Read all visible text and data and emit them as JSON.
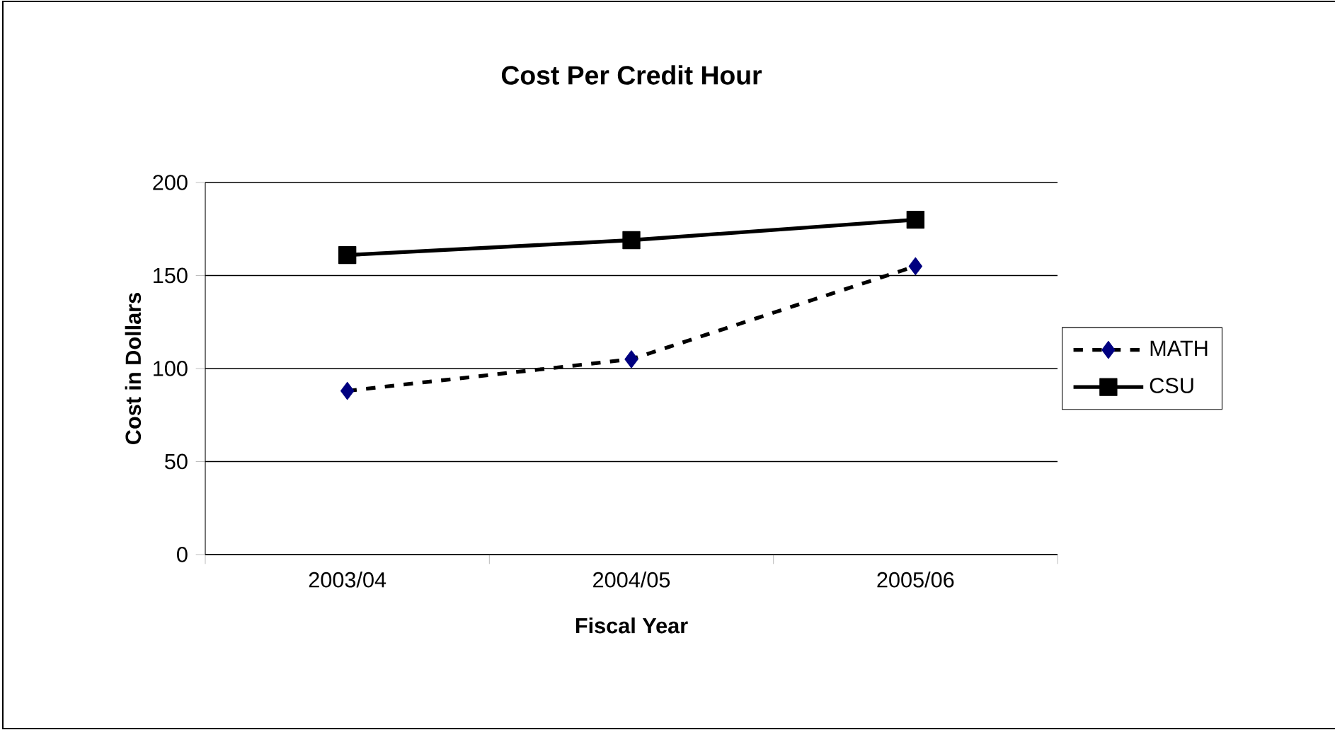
{
  "chart_data": {
    "type": "line",
    "title": "Cost Per Credit Hour",
    "xlabel": "Fiscal Year",
    "ylabel": "Cost in Dollars",
    "categories": [
      "2003/04",
      "2004/05",
      "2005/06"
    ],
    "series": [
      {
        "name": "MATH",
        "color": "#000080",
        "values": [
          88,
          105,
          155
        ],
        "marker": "diamond",
        "line_style": "dashed"
      },
      {
        "name": "CSU",
        "color": "#000000",
        "values": [
          161,
          169,
          180
        ],
        "marker": "square",
        "line_style": "solid"
      }
    ],
    "ylim": [
      0,
      200
    ],
    "yticks": [
      0,
      50,
      100,
      150,
      200
    ],
    "grid": "y",
    "legend": "right"
  }
}
